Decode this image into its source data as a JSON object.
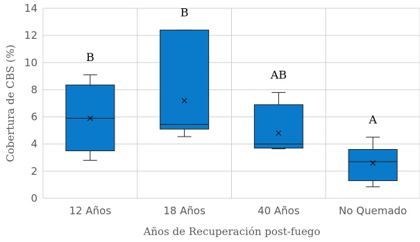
{
  "chart_data": {
    "type": "box",
    "xlabel": "Años de Recuperación post-fuego",
    "ylabel": "Cobertura de CBS (%)",
    "ylim": [
      0,
      14
    ],
    "yticks": [
      0,
      2,
      4,
      6,
      8,
      10,
      12,
      14
    ],
    "grid": true,
    "categories": [
      "12 Años",
      "18 Años",
      "40 Años",
      "No Quemado"
    ],
    "boxes": [
      {
        "category": "12 Años",
        "min": 2.8,
        "q1": 3.5,
        "median": 5.9,
        "q3": 8.35,
        "max": 9.1,
        "mean": 5.9,
        "group": "B"
      },
      {
        "category": "18 Años",
        "min": 4.55,
        "q1": 5.1,
        "median": 5.45,
        "q3": 12.4,
        "max": 12.4,
        "mean": 7.2,
        "group": "B"
      },
      {
        "category": "40 Años",
        "min": 3.65,
        "q1": 3.7,
        "median": 4.0,
        "q3": 6.9,
        "max": 7.8,
        "mean": 4.8,
        "group": "AB"
      },
      {
        "category": "No Quemado",
        "min": 0.85,
        "q1": 1.3,
        "median": 2.7,
        "q3": 3.6,
        "max": 4.5,
        "mean": 2.6,
        "group": "A"
      }
    ],
    "colors": {
      "box_fill": "#0a7bcb",
      "box_stroke": "#1f1f1f",
      "grid": "#d0d0d0",
      "text": "#595959"
    }
  }
}
